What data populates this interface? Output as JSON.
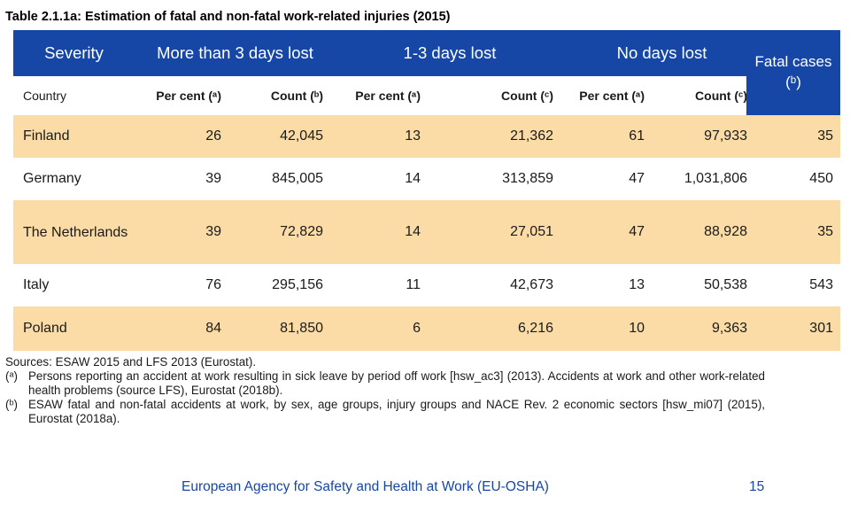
{
  "title": "Table 2.1.1a: Estimation of fatal and non-fatal work-related injuries (2015)",
  "table": {
    "group_headers": [
      "Severity",
      "More than 3 days lost",
      "1-3 days lost",
      "No days lost"
    ],
    "fatal_header": "Fatal cases (ᵇ)",
    "sub_headers": [
      "Country",
      "Per cent (ᵃ)",
      "Count (ᵇ)",
      "Per cent (ᵃ)",
      "Count (ᶜ)",
      "Per cent (ᵃ)",
      "Count (ᶜ)"
    ],
    "rows": [
      {
        "country": "Finland",
        "p1": "26",
        "c1": "42,045",
        "p2": "13",
        "c2": "21,362",
        "p3": "61",
        "c3": "97,933",
        "fatal": "35"
      },
      {
        "country": "Germany",
        "p1": "39",
        "c1": "845,005",
        "p2": "14",
        "c2": "313,859",
        "p3": "47",
        "c3": "1,031,806",
        "fatal": "450"
      },
      {
        "country": "The Netherlands",
        "p1": "39",
        "c1": "72,829",
        "p2": "14",
        "c2": "27,051",
        "p3": "47",
        "c3": "88,928",
        "fatal": "35"
      },
      {
        "country": "Italy",
        "p1": "76",
        "c1": "295,156",
        "p2": "11",
        "c2": "42,673",
        "p3": "13",
        "c3": "50,538",
        "fatal": "543"
      },
      {
        "country": "Poland",
        "p1": "84",
        "c1": "81,850",
        "p2": "6",
        "c2": "6,216",
        "p3": "10",
        "c3": "9,363",
        "fatal": "301"
      }
    ]
  },
  "notes": {
    "sources": "Sources: ESAW 2015 and LFS 2013 (Eurostat).",
    "a_mark": "(ᵃ)",
    "a_text": "Persons reporting an accident at work resulting in sick leave by period off work [hsw_ac3] (2013). Accidents at work and other work-related health problems (source LFS), Eurostat (2018b).",
    "b_mark": "(ᵇ)",
    "b_text": "ESAW fatal and non-fatal accidents at work, by sex, age groups, injury groups and NACE Rev. 2 economic sectors [hsw_mi07] (2015), Eurostat (2018a)."
  },
  "footer": {
    "agency": "European Agency for Safety and Health at Work (EU-OSHA)",
    "page": "15"
  },
  "colors": {
    "header_blue": "#1747a6",
    "shade": "#fcdca6"
  }
}
